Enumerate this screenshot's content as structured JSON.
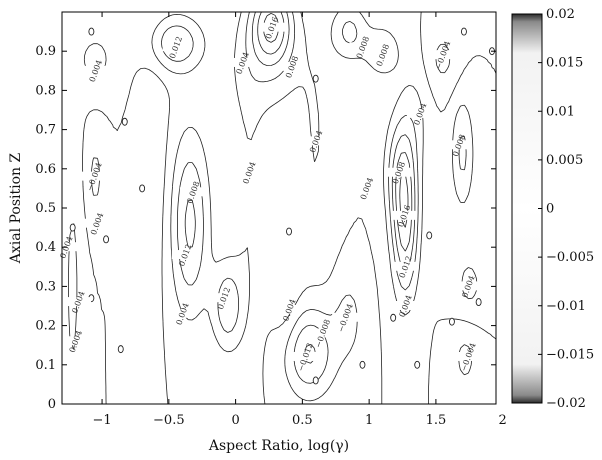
{
  "chart_data": {
    "type": "contour",
    "xlabel": "Aspect Ratio, log(γ)",
    "ylabel": "Axial Position Z",
    "xlim": [
      -1.3,
      1.95
    ],
    "ylim": [
      0,
      1.0
    ],
    "xticks": [
      -1,
      -0.5,
      0,
      0.5,
      1,
      1.5,
      2
    ],
    "xtick_labels": [
      "−1",
      "−0.5",
      "0",
      "0.5",
      "1",
      "1.5",
      "2"
    ],
    "yticks": [
      0,
      0.1,
      0.2,
      0.3,
      0.4,
      0.5,
      0.6,
      0.7,
      0.8,
      0.9
    ],
    "ytick_labels": [
      "0",
      "0.1",
      "0.2",
      "0.3",
      "0.4",
      "0.5",
      "0.6",
      "0.7",
      "0.8",
      "0.9"
    ],
    "contour_levels": [
      -0.02,
      -0.016,
      -0.012,
      -0.008,
      -0.004,
      0,
      0.004,
      0.008,
      0.012,
      0.016,
      0.02
    ],
    "grid": false,
    "colorbar": {
      "range": [
        -0.02,
        0.02
      ],
      "ticks": [
        0.02,
        0.015,
        0.01,
        0.005,
        0,
        -0.005,
        -0.01,
        -0.015,
        -0.02
      ],
      "tick_labels": [
        "0.02",
        "0.015",
        "0.01",
        "0.005",
        "0",
        "−0.005",
        "−0.01",
        "−0.015",
        "−0.02"
      ],
      "colors": [
        "#2b2b2b",
        "#ffffff",
        "#2b2b2b"
      ],
      "placement": "right"
    },
    "contour_labels": [
      {
        "x": 0.27,
        "y": 0.96,
        "text": "0.016"
      },
      {
        "x": 0.42,
        "y": 0.86,
        "text": "0.008"
      },
      {
        "x": 0.05,
        "y": 0.87,
        "text": "0.004"
      },
      {
        "x": -0.45,
        "y": 0.91,
        "text": "0.012"
      },
      {
        "x": -1.05,
        "y": 0.85,
        "text": "0.004"
      },
      {
        "x": 0.95,
        "y": 0.91,
        "text": "0.008"
      },
      {
        "x": 1.1,
        "y": 0.89,
        "text": "0.008"
      },
      {
        "x": 1.55,
        "y": 0.89,
        "text": "−0.004"
      },
      {
        "x": -0.32,
        "y": 0.54,
        "text": "0.008"
      },
      {
        "x": -0.38,
        "y": 0.38,
        "text": "0.012"
      },
      {
        "x": -0.4,
        "y": 0.23,
        "text": "0.004"
      },
      {
        "x": -0.09,
        "y": 0.27,
        "text": "0.012"
      },
      {
        "x": 0.1,
        "y": 0.59,
        "text": "0.004"
      },
      {
        "x": 0.6,
        "y": 0.67,
        "text": "0.004"
      },
      {
        "x": 1.26,
        "y": 0.48,
        "text": "0.016"
      },
      {
        "x": 1.27,
        "y": 0.35,
        "text": "0.012"
      },
      {
        "x": 1.22,
        "y": 0.59,
        "text": "0.008"
      },
      {
        "x": 1.38,
        "y": 0.74,
        "text": "0.004"
      },
      {
        "x": 1.67,
        "y": 0.66,
        "text": "0.008"
      },
      {
        "x": 1.27,
        "y": 0.25,
        "text": "0.004"
      },
      {
        "x": 0.98,
        "y": 0.55,
        "text": "0.004"
      },
      {
        "x": 0.82,
        "y": 0.22,
        "text": "−0.004"
      },
      {
        "x": 0.65,
        "y": 0.18,
        "text": "−0.008"
      },
      {
        "x": 0.52,
        "y": 0.12,
        "text": "−0.012"
      },
      {
        "x": 0.4,
        "y": 0.24,
        "text": "0.004"
      },
      {
        "x": 1.74,
        "y": 0.12,
        "text": "−0.004"
      },
      {
        "x": 1.74,
        "y": 0.3,
        "text": "0.004"
      },
      {
        "x": -1.27,
        "y": 0.4,
        "text": "0.004"
      },
      {
        "x": -1.18,
        "y": 0.26,
        "text": "0.004"
      },
      {
        "x": -1.2,
        "y": 0.16,
        "text": "0.004"
      },
      {
        "x": -1.04,
        "y": 0.46,
        "text": "0.004"
      },
      {
        "x": -1.06,
        "y": 0.58,
        "text": "−0.004"
      }
    ],
    "zero_markers": [
      {
        "x": -1.08,
        "y": 0.95
      },
      {
        "x": -0.83,
        "y": 0.72
      },
      {
        "x": -0.7,
        "y": 0.55
      },
      {
        "x": -0.97,
        "y": 0.42
      },
      {
        "x": -1.08,
        "y": 0.27
      },
      {
        "x": -0.86,
        "y": 0.14
      },
      {
        "x": -1.22,
        "y": 0.45
      },
      {
        "x": 0.6,
        "y": 0.83
      },
      {
        "x": 0.4,
        "y": 0.44
      },
      {
        "x": 0.6,
        "y": 0.06
      },
      {
        "x": 0.95,
        "y": 0.1
      },
      {
        "x": 1.36,
        "y": 0.1
      },
      {
        "x": 1.82,
        "y": 0.26
      },
      {
        "x": 1.45,
        "y": 0.43
      },
      {
        "x": 1.18,
        "y": 0.22
      },
      {
        "x": 1.62,
        "y": 0.21
      },
      {
        "x": 1.71,
        "y": 0.95
      },
      {
        "x": 1.92,
        "y": 0.9
      }
    ]
  }
}
